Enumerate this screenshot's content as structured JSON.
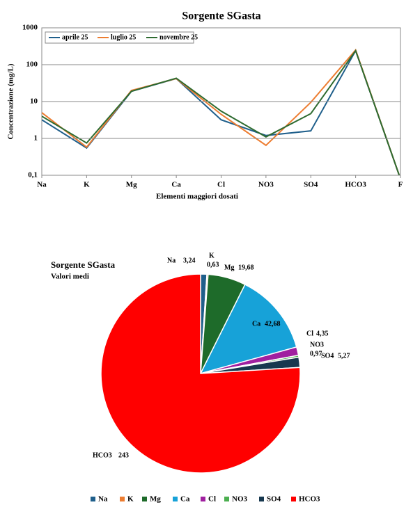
{
  "chart_data": [
    {
      "type": "line",
      "title": "Sorgente SGasta",
      "ylabel": "Concentrazione (mg/L)",
      "xlabel": "Elementi maggiori dosati",
      "categories": [
        "Na",
        "K",
        "Mg",
        "Ca",
        "Cl",
        "NO3",
        "SO4",
        "HCO3",
        "F"
      ],
      "series": [
        {
          "name": "aprile 25",
          "color": "#1f5f8b",
          "values": [
            3.2,
            0.55,
            19,
            42,
            3.2,
            1.2,
            1.6,
            240,
            0.08
          ]
        },
        {
          "name": "luglio 25",
          "color": "#ed7d31",
          "values": [
            5,
            0.58,
            20,
            42,
            4.5,
            0.65,
            9.5,
            250,
            0.08
          ]
        },
        {
          "name": "novembre 25",
          "color": "#2e6b30",
          "values": [
            4,
            0.75,
            19,
            43,
            5.5,
            1.1,
            4.7,
            240,
            0.08
          ]
        }
      ],
      "log_scale": true,
      "ylim": [
        0.1,
        1000
      ],
      "yticks": [
        {
          "value": 0.1,
          "label": "0,1"
        },
        1,
        10,
        100,
        1000
      ],
      "grid": true,
      "legend": "top-left"
    },
    {
      "type": "pie",
      "title": "Sorgente SGasta",
      "subtitle": "Valori medi",
      "categories": [
        "Na",
        "K",
        "Mg",
        "Ca",
        "Cl",
        "NO3",
        "SO4",
        "HCO3"
      ],
      "values": [
        3.24,
        0.63,
        19.68,
        42.68,
        4.35,
        0.97,
        5.27,
        243
      ],
      "value_labels": [
        "3,24",
        "0,63",
        "19,68",
        "42,68",
        "4,35",
        "0,97",
        "5,27",
        "243"
      ],
      "colors": [
        "#1f5f8b",
        "#ed7d31",
        "#1e6b2a",
        "#17a2d8",
        "#a020a0",
        "#4caf50",
        "#17384f",
        "#ff0000"
      ],
      "legend": "bottom"
    }
  ]
}
